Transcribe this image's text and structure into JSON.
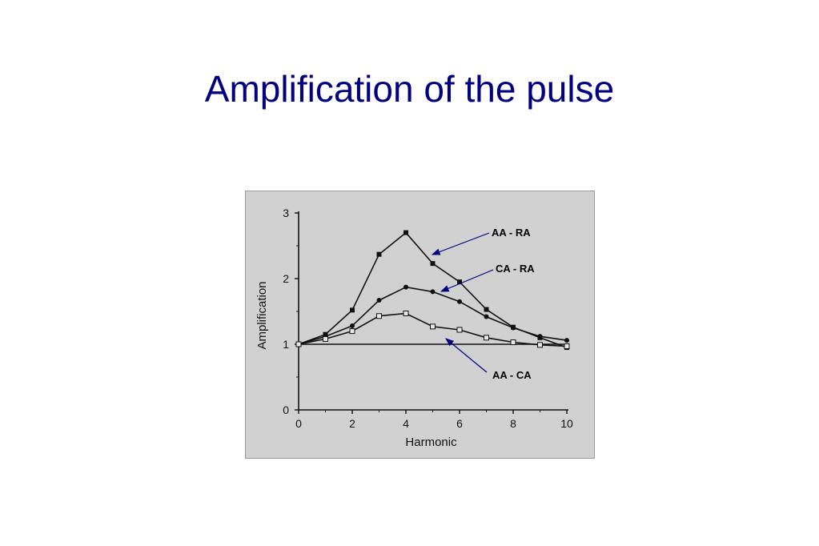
{
  "slide": {
    "title": "Amplification of the pulse",
    "title_color": "#000080"
  },
  "chart_data": {
    "type": "line",
    "title": "",
    "xlabel": "Harmonic",
    "ylabel": "Amplification",
    "xlim": [
      0,
      10
    ],
    "ylim": [
      0,
      3
    ],
    "xticks": [
      0,
      2,
      4,
      6,
      8,
      10
    ],
    "yticks": [
      0,
      1,
      2,
      3
    ],
    "grid": false,
    "reference_line": 1,
    "series": [
      {
        "name": "AA - RA",
        "marker": "filled-square",
        "x": [
          0,
          1,
          2,
          3,
          4,
          5,
          6,
          7,
          8,
          9,
          10
        ],
        "y": [
          1.0,
          1.15,
          1.52,
          2.37,
          2.7,
          2.23,
          1.95,
          1.53,
          1.26,
          1.1,
          0.95
        ]
      },
      {
        "name": "CA - RA",
        "marker": "filled-circle",
        "x": [
          0,
          1,
          2,
          3,
          4,
          5,
          6,
          7,
          8,
          9,
          10
        ],
        "y": [
          1.0,
          1.12,
          1.28,
          1.67,
          1.87,
          1.8,
          1.65,
          1.42,
          1.25,
          1.12,
          1.06
        ]
      },
      {
        "name": "AA - CA",
        "marker": "open-square",
        "x": [
          0,
          1,
          2,
          3,
          4,
          5,
          6,
          7,
          8,
          9,
          10
        ],
        "y": [
          1.0,
          1.08,
          1.2,
          1.43,
          1.47,
          1.27,
          1.22,
          1.1,
          1.03,
          0.99,
          0.97
        ]
      }
    ],
    "annotation_color": "#000080",
    "background_color": "#d1d1d1"
  }
}
